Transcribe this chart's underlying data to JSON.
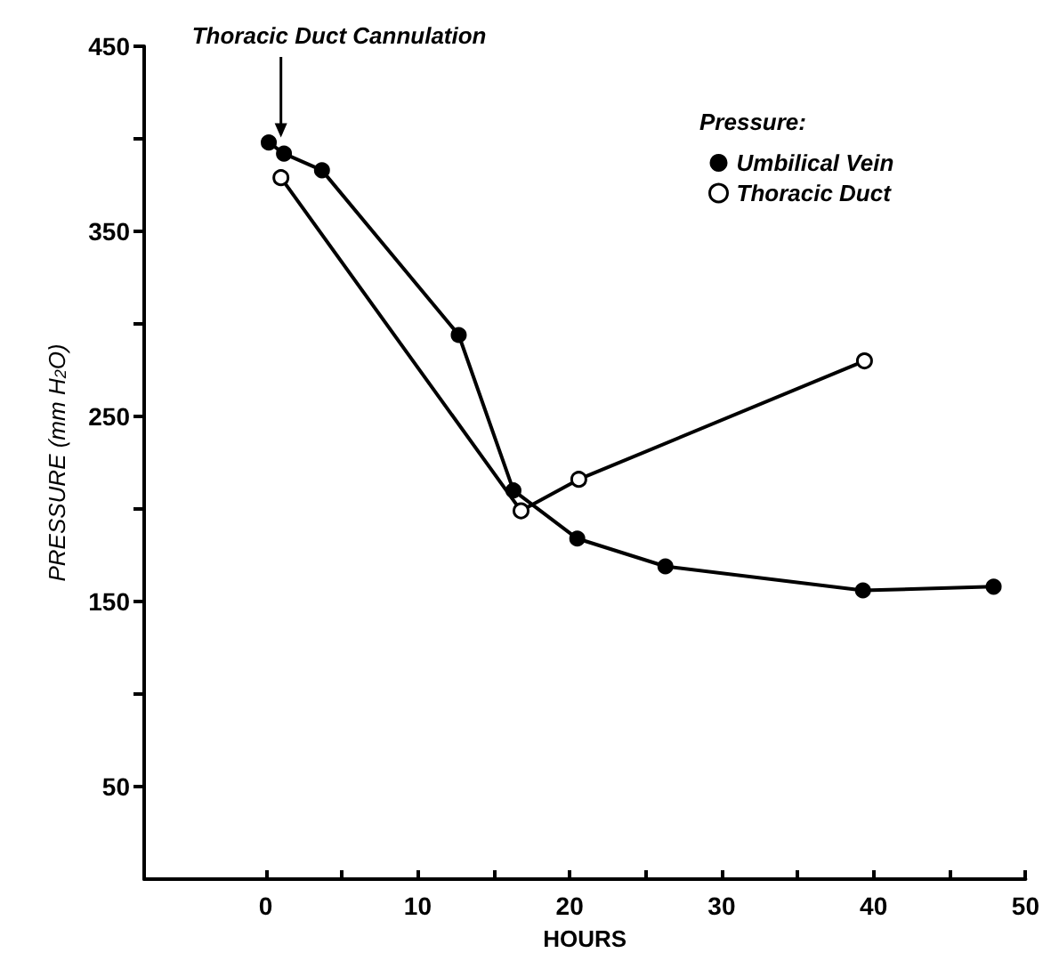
{
  "chart_data": {
    "type": "line",
    "xlabel": "HOURS",
    "ylabel": "PRESSURE (mm H$_{2}$O)",
    "legend_title": "Pressure:",
    "annotations": [
      {
        "text": "Thoracic Duct Cannulation",
        "x": 1,
        "y": 395
      }
    ],
    "series": [
      {
        "name": "Umbilical Vein",
        "color": "#000000",
        "marker": "circle",
        "x": [
          0.2,
          1.2,
          3.7,
          12.7,
          16.3,
          20.5,
          26.3,
          39.3,
          47.9
        ],
        "values": [
          398,
          392,
          383,
          294,
          210,
          184,
          169,
          156,
          158
        ]
      },
      {
        "name": "Thoracic Duct",
        "color": "#000000",
        "marker": "open_circle",
        "x": [
          1.0,
          16.8,
          20.6,
          39.4
        ],
        "values": [
          379,
          199,
          216,
          280
        ]
      }
    ],
    "xlim": [
      -8,
      50
    ],
    "xticks": [
      0,
      {
        "value": 5,
        "label": null
      },
      10,
      {
        "value": 15,
        "label": null
      },
      20,
      {
        "value": 25,
        "label": null
      },
      30,
      {
        "value": 35,
        "label": null
      },
      40,
      {
        "value": 45,
        "label": null
      },
      50
    ],
    "ylim": [
      0,
      450
    ],
    "yticks": [
      50,
      {
        "value": 100,
        "label": null
      },
      150,
      {
        "value": 200,
        "label": null
      },
      250,
      {
        "value": 300,
        "label": null
      },
      350,
      {
        "value": 400,
        "label": null
      },
      450
    ],
    "grid": false,
    "legend": "top right",
    "line_style": "solid"
  }
}
